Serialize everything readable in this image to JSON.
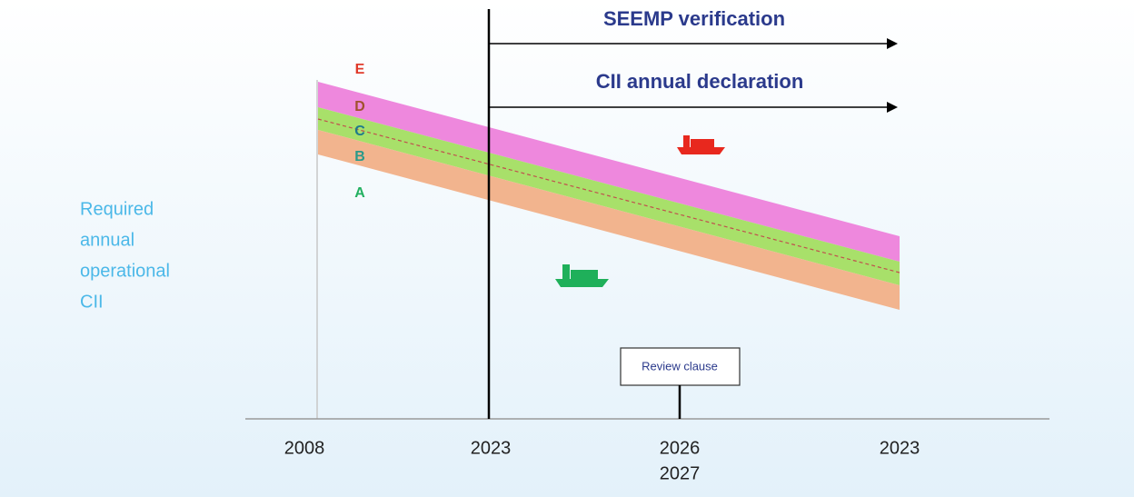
{
  "arrows": [
    "SEEMP verification",
    "CII annual declaration"
  ],
  "rating_labels": [
    "E",
    "D",
    "C",
    "B",
    "A"
  ],
  "y_axis_label": [
    "Required",
    "annual",
    "operational",
    "CII"
  ],
  "review_clause": "Review clause",
  "x_labels": [
    [
      "2008"
    ],
    [
      "2023"
    ],
    [
      "2026",
      "2027"
    ],
    [
      "2023"
    ]
  ]
}
